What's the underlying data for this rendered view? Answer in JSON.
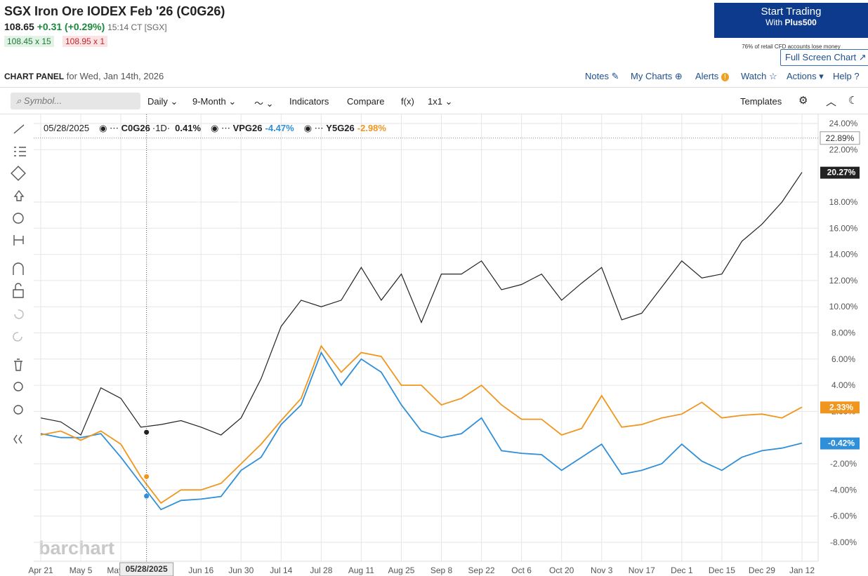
{
  "header": {
    "title": "SGX Iron Ore IODEX Feb '26 (C0G26)",
    "price": "108.65",
    "change": "+0.31 (+0.29%)",
    "time": "15:14 CT [SGX]",
    "bid": "108.45 x 15",
    "ask": "108.95 x 1"
  },
  "ad": {
    "line1": "Start Trading",
    "line2": "With",
    "brand": "Plus500",
    "disclaimer": "76% of retail CFD accounts lose money"
  },
  "full_screen": "Full Screen Chart",
  "panel": {
    "title": "CHART PANEL",
    "date": "for Wed, Jan 14th, 2026"
  },
  "nav": [
    "Notes",
    "My Charts",
    "Alerts",
    "Watch",
    "Actions",
    "Help"
  ],
  "toolbar": {
    "symbol_placeholder": "Symbol...",
    "interval": "Daily",
    "range": "9-Month",
    "items": [
      "Indicators",
      "Compare",
      "f(x)",
      "1x1"
    ],
    "templates": "Templates"
  },
  "watermark": "barchart",
  "chart_data": {
    "type": "line",
    "interval_label": "·1D·",
    "categories": [
      "Apr 21",
      null,
      "May 5",
      null,
      "May 19",
      null,
      null,
      null,
      "Jun 16",
      null,
      "Jun 30",
      null,
      "Jul 14",
      null,
      "Jul 28",
      null,
      "Aug 11",
      null,
      "Aug 25",
      null,
      "Sep 8",
      null,
      "Sep 22",
      null,
      "Oct 6",
      null,
      "Oct 20",
      null,
      "Nov 3",
      null,
      "Nov 17",
      null,
      "Dec 1",
      null,
      "Dec 15",
      null,
      "Dec 29",
      null,
      "Jan 12"
    ],
    "series": [
      {
        "name": "C0G26",
        "color": "#222222",
        "values": [
          1.5,
          1.2,
          0.2,
          3.8,
          3.0,
          0.8,
          1.0,
          1.3,
          0.8,
          0.2,
          1.5,
          4.5,
          8.5,
          10.5,
          10.0,
          10.5,
          13.0,
          10.5,
          12.5,
          8.8,
          12.5,
          12.5,
          13.5,
          11.3,
          11.7,
          12.5,
          10.5,
          11.8,
          13.0,
          9.0,
          9.5,
          11.5,
          13.5,
          12.2,
          12.5,
          15.0,
          16.3,
          18.0,
          20.27
        ],
        "last_label": "20.27%",
        "hover": {
          "value": 0.41,
          "label": "0.41%"
        }
      },
      {
        "name": "VPG26",
        "color": "#2f8fd8",
        "values": [
          0.3,
          0.0,
          0.0,
          0.3,
          -1.5,
          -3.5,
          -5.5,
          -4.8,
          -4.7,
          -4.5,
          -2.5,
          -1.5,
          1.0,
          2.5,
          6.5,
          4.0,
          6.0,
          5.0,
          2.5,
          0.5,
          0.0,
          0.3,
          1.5,
          -1.0,
          -1.2,
          -1.3,
          -2.5,
          -1.5,
          -0.5,
          -2.8,
          -2.5,
          -2.0,
          -0.5,
          -1.8,
          -2.5,
          -1.5,
          -1.0,
          -0.8,
          -0.42
        ],
        "last_label": "-0.42%",
        "hover": {
          "value": -4.47,
          "label": "-4.47%"
        }
      },
      {
        "name": "Y5G26",
        "color": "#f0961e",
        "values": [
          0.2,
          0.5,
          -0.2,
          0.5,
          -0.5,
          -3.0,
          -5.0,
          -4.0,
          -4.0,
          -3.5,
          -2.0,
          -0.5,
          1.3,
          3.0,
          7.0,
          5.0,
          6.5,
          6.2,
          4.0,
          4.0,
          2.5,
          3.0,
          4.0,
          2.5,
          1.4,
          1.4,
          0.2,
          0.7,
          3.2,
          0.8,
          1.0,
          1.5,
          1.8,
          2.7,
          1.5,
          1.7,
          1.8,
          1.5,
          2.33
        ],
        "last_label": "2.33%",
        "hover": {
          "value": -2.98,
          "label": "-2.98%"
        }
      }
    ],
    "ylim": [
      -9.45,
      24.7
    ],
    "yticks": [
      {
        "value": -8,
        "label": "-8.00%"
      },
      {
        "value": -6,
        "label": "-6.00%"
      },
      {
        "value": -4,
        "label": "-4.00%"
      },
      {
        "value": -2,
        "label": "-2.00%"
      },
      {
        "value": 2,
        "label": "2.00%"
      },
      {
        "value": 4,
        "label": "4.00%"
      },
      {
        "value": 6,
        "label": "6.00%"
      },
      {
        "value": 8,
        "label": "8.00%"
      },
      {
        "value": 10,
        "label": "10.00%"
      },
      {
        "value": 12,
        "label": "12.00%"
      },
      {
        "value": 14,
        "label": "14.00%"
      },
      {
        "value": 16,
        "label": "16.00%"
      },
      {
        "value": 18,
        "label": "18.00%"
      },
      {
        "value": 22,
        "label": "22.00%"
      },
      {
        "value": 24,
        "label": "24.00%"
      }
    ],
    "grid": true,
    "crosshair": {
      "date": "05/28/2025",
      "value": {
        "value": 22.89,
        "label": "22.89%"
      }
    }
  }
}
